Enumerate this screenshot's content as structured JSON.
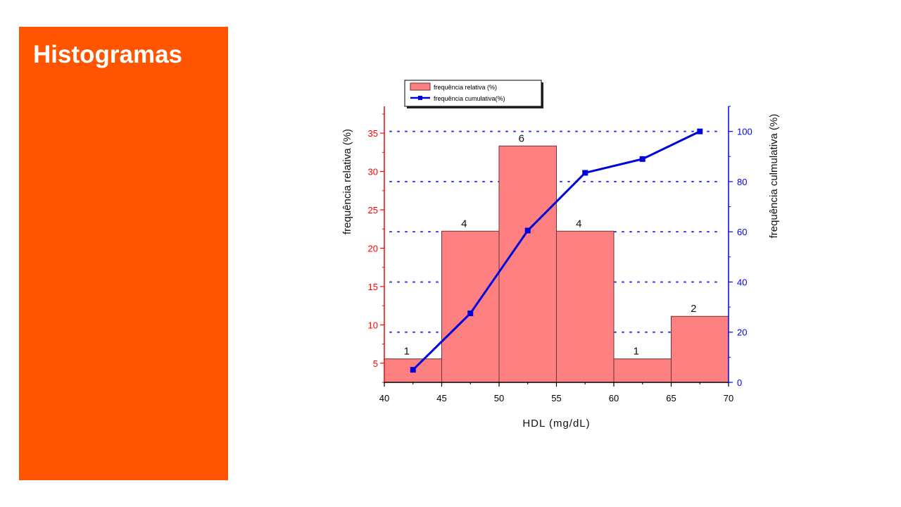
{
  "slide": {
    "title": "Histogramas",
    "accent_color": "#ff5500"
  },
  "chart_data": {
    "type": "bar",
    "bar_type": "histogram",
    "xlabel": "HDL (mg/dL)",
    "ylabel": "frequência relativa (%)",
    "y2label": "frequência culmulativa (%)",
    "xlim": [
      40,
      70
    ],
    "ylim": [
      2.5,
      38.5
    ],
    "y2lim": [
      0,
      110
    ],
    "x_ticks": [
      40,
      45,
      50,
      55,
      60,
      65,
      70
    ],
    "y_ticks": [
      5,
      10,
      15,
      20,
      25,
      30,
      35
    ],
    "y2_ticks": [
      0,
      20,
      40,
      60,
      80,
      100
    ],
    "grid": "dotted horizontal",
    "legend_position": "top",
    "legend": [
      {
        "label": "frequência relativa (%)",
        "kind": "bar"
      },
      {
        "label": "frequência cumulativa(%)",
        "kind": "line"
      }
    ],
    "bins": [
      {
        "start": 40,
        "end": 45,
        "value": 5.56,
        "count_label": "1"
      },
      {
        "start": 45,
        "end": 50,
        "value": 22.22,
        "count_label": "4"
      },
      {
        "start": 50,
        "end": 55,
        "value": 33.33,
        "count_label": "6"
      },
      {
        "start": 55,
        "end": 60,
        "value": 22.22,
        "count_label": "4"
      },
      {
        "start": 60,
        "end": 65,
        "value": 5.56,
        "count_label": "1"
      },
      {
        "start": 65,
        "end": 70,
        "value": 11.11,
        "count_label": "2"
      }
    ],
    "cumulative": {
      "name": "frequência cumulativa(%)",
      "x": [
        42.5,
        47.5,
        52.5,
        57.5,
        62.5,
        67.5
      ],
      "y": [
        5,
        27.5,
        60.5,
        83.5,
        89,
        100
      ]
    },
    "colors": {
      "bar_fill": "#ff8080",
      "bar_stroke": "#6b3333",
      "line": "#0000dd",
      "left_axis": "#ff0000",
      "right_axis": "#0000ff",
      "grid": "#3333ee"
    }
  }
}
